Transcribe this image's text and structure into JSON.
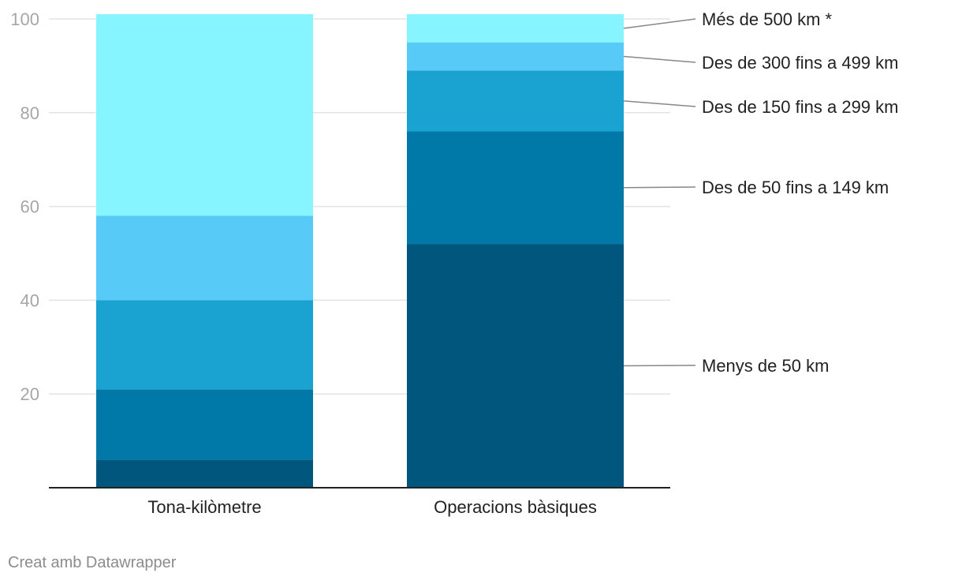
{
  "chart_data": {
    "type": "bar",
    "stacked": true,
    "categories": [
      "Tona-kilòmetre",
      "Operacions bàsiques"
    ],
    "series": [
      {
        "name": "Menys de 50 km",
        "values": [
          6,
          52
        ],
        "color": "#00567d"
      },
      {
        "name": "Des de 50 fins a 149 km",
        "values": [
          15,
          24
        ],
        "color": "#0079a8"
      },
      {
        "name": "Des de 150 fins a 299 km",
        "values": [
          19,
          13
        ],
        "color": "#1aa2d0"
      },
      {
        "name": "Des de 300 fins a 499 km",
        "values": [
          18,
          6
        ],
        "color": "#58caf7"
      },
      {
        "name": "Més de 500 km *",
        "values": [
          43,
          6
        ],
        "color": "#86f5ff"
      }
    ],
    "ylim": [
      0,
      101
    ],
    "yticks": [
      20,
      40,
      60,
      80,
      100
    ],
    "grid": true,
    "legend_placement": "right, labels beside last bar",
    "title": "",
    "xlabel": "",
    "ylabel": ""
  },
  "footer": {
    "credit": "Creat amb Datawrapper"
  }
}
